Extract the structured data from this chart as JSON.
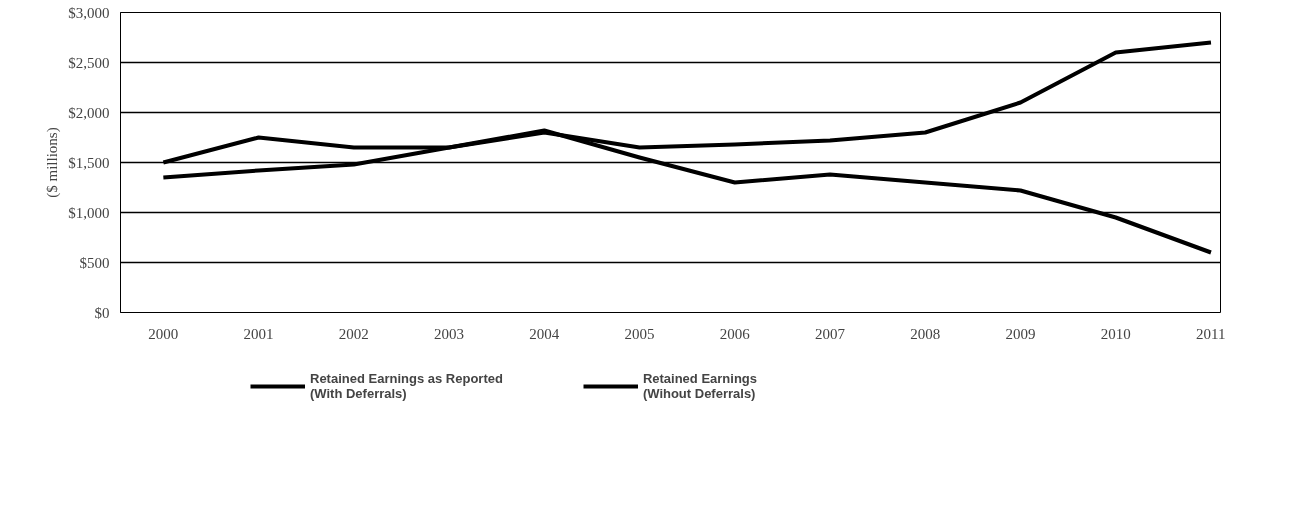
{
  "chart_data": {
    "type": "line",
    "ylabel": "($ millions)",
    "categories": [
      "2000",
      "2001",
      "2002",
      "2003",
      "2004",
      "2005",
      "2006",
      "2007",
      "2008",
      "2009",
      "2010",
      "2011"
    ],
    "series": [
      {
        "name": "Retained Earnings as Reported\n(With Deferrals)",
        "color": "#000000",
        "values": [
          1500,
          1750,
          1650,
          1650,
          1800,
          1650,
          1680,
          1720,
          1800,
          2100,
          2600,
          2700
        ]
      },
      {
        "name": "Retained Earnings\n(Wihout Deferrals)",
        "color": "#000000",
        "values": [
          1350,
          1420,
          1480,
          1650,
          1820,
          1550,
          1300,
          1380,
          1300,
          1220,
          950,
          600
        ]
      }
    ],
    "ylim": [
      0,
      3000
    ],
    "yticks": [
      {
        "value": 0,
        "label": "$0"
      },
      {
        "value": 500,
        "label": "$500"
      },
      {
        "value": 1000,
        "label": "$1,000"
      },
      {
        "value": 1500,
        "label": "$1,500"
      },
      {
        "value": 2000,
        "label": "$2,000"
      },
      {
        "value": 2500,
        "label": "$2,500"
      },
      {
        "value": 3000,
        "label": "$3,000"
      }
    ],
    "grid": "y",
    "legend": "bottom left",
    "marker": "none",
    "line_style": "solid"
  }
}
